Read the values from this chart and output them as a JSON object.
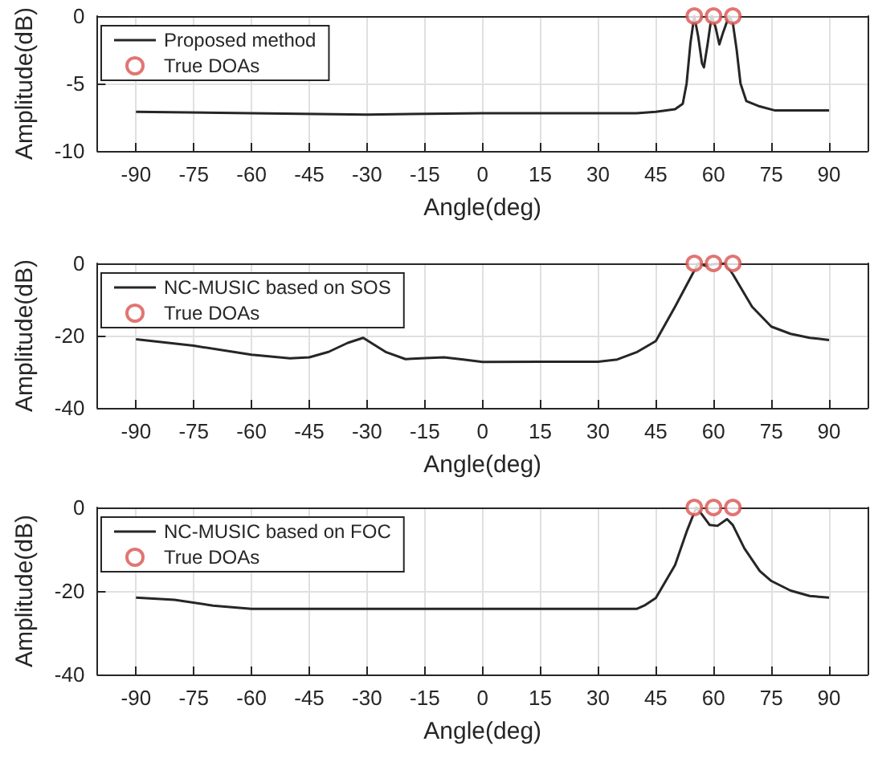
{
  "chart_data": [
    {
      "type": "line",
      "xlabel": "Angle(deg)",
      "ylabel": "Amplitude(dB)",
      "xlim": [
        -100,
        100
      ],
      "xticks": [
        -90,
        -75,
        -60,
        -45,
        -30,
        -15,
        0,
        15,
        30,
        45,
        60,
        75,
        90
      ],
      "ylim": [
        -10,
        0
      ],
      "yticks": [
        -10,
        -5,
        0
      ],
      "grid": true,
      "legend": "top left",
      "series": [
        {
          "name": "Proposed method",
          "color": "#262626",
          "marker": "none",
          "x": [
            -90,
            -60,
            -30,
            0,
            30,
            40,
            45,
            50,
            52,
            53,
            54,
            55,
            56,
            57,
            57.5,
            58.5,
            59.5,
            60.5,
            61.5,
            62.5,
            64,
            65,
            66,
            67,
            68.5,
            72,
            76,
            90
          ],
          "values": [
            -7.1,
            -7.2,
            -7.3,
            -7.2,
            -7.2,
            -7.2,
            -7.1,
            -6.9,
            -6.5,
            -5,
            -2,
            0,
            -1.5,
            -3.5,
            -3.8,
            -2,
            0,
            -0.8,
            -2.1,
            -1.2,
            0,
            -0.5,
            -2.5,
            -5,
            -6.3,
            -6.7,
            -7,
            -7
          ]
        },
        {
          "name": "True DOAs",
          "type": "scatter",
          "color": "#d9534f",
          "marker": "circle",
          "x": [
            55,
            60,
            65
          ],
          "values": [
            0,
            0,
            0
          ]
        }
      ]
    },
    {
      "type": "line",
      "xlabel": "Angle(deg)",
      "ylabel": "Amplitude(dB)",
      "xlim": [
        -100,
        100
      ],
      "xticks": [
        -90,
        -75,
        -60,
        -45,
        -30,
        -15,
        0,
        15,
        30,
        45,
        60,
        75,
        90
      ],
      "ylim": [
        -40,
        0
      ],
      "yticks": [
        -40,
        -20,
        0
      ],
      "grid": true,
      "legend": "top left",
      "series": [
        {
          "name": "NC-MUSIC based on SOS",
          "color": "#262626",
          "marker": "none",
          "x": [
            -90,
            -75,
            -60,
            -50,
            -45,
            -40,
            -35,
            -31,
            -25,
            -20,
            -15,
            -10,
            -5,
            0,
            15,
            30,
            35,
            40,
            45,
            50,
            53,
            56,
            58,
            60,
            62,
            63,
            65,
            70,
            75,
            80,
            85,
            90
          ],
          "values": [
            -21,
            -22.8,
            -25.3,
            -26.3,
            -26,
            -24.5,
            -22,
            -20.6,
            -24.6,
            -26.5,
            -26.2,
            -26,
            -26.6,
            -27.3,
            -27.2,
            -27.2,
            -26.6,
            -24.6,
            -21.5,
            -12,
            -6,
            0,
            -0.7,
            -0.2,
            -0.1,
            0,
            -3,
            -12,
            -17.5,
            -19.5,
            -20.6,
            -21.2
          ]
        },
        {
          "name": "True DOAs",
          "type": "scatter",
          "color": "#d9534f",
          "marker": "circle",
          "x": [
            55,
            60,
            65
          ],
          "values": [
            0,
            0,
            0
          ]
        }
      ]
    },
    {
      "type": "line",
      "xlabel": "Angle(deg)",
      "ylabel": "Amplitude(dB)",
      "xlim": [
        -100,
        100
      ],
      "xticks": [
        -90,
        -75,
        -60,
        -45,
        -30,
        -15,
        0,
        15,
        30,
        45,
        60,
        75,
        90
      ],
      "ylim": [
        -40,
        0
      ],
      "yticks": [
        -40,
        -20,
        0
      ],
      "grid": true,
      "legend": "top left",
      "series": [
        {
          "name": "NC-MUSIC based on FOC",
          "color": "#262626",
          "marker": "none",
          "x": [
            -90,
            -80,
            -70,
            -60,
            0,
            40,
            42,
            45,
            50,
            53,
            55.5,
            57,
            59,
            61,
            63.5,
            65,
            68,
            72,
            75,
            80,
            85,
            90
          ],
          "values": [
            -21.6,
            -22.1,
            -23.5,
            -24.3,
            -24.3,
            -24.3,
            -23.5,
            -21.7,
            -13.8,
            -5.8,
            0,
            -1.7,
            -4.2,
            -4.4,
            -2.8,
            -4.2,
            -9.8,
            -15.2,
            -17.6,
            -19.9,
            -21.2,
            -21.6
          ]
        },
        {
          "name": "True DOAs",
          "type": "scatter",
          "color": "#d9534f",
          "marker": "circle",
          "x": [
            55,
            60,
            65
          ],
          "values": [
            0,
            0,
            0
          ]
        }
      ]
    }
  ]
}
